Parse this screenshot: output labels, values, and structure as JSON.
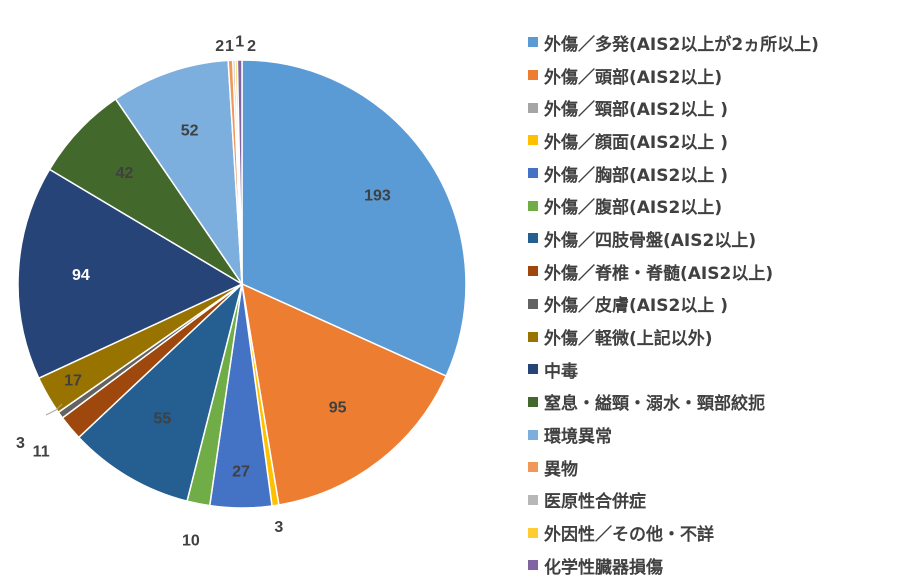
{
  "chart_data": {
    "type": "pie",
    "title": "",
    "categories": [
      "外傷／多発(AIS2以上が2ヵ所以上)",
      "外傷／頭部(AIS2以上)",
      "外傷／頸部(AIS2以上 )",
      "外傷／顔面(AIS2以上 )",
      "外傷／胸部(AIS2以上 )",
      "外傷／腹部(AIS2以上)",
      "外傷／四肢骨盤(AIS2以上)",
      "外傷／脊椎・脊髄(AIS2以上)",
      "外傷／皮膚(AIS2以上 )",
      "外傷／軽微(上記以外)",
      "中毒",
      "窒息・縊頸・溺水・頸部絞扼",
      "環境異常",
      "異物",
      "医原性合併症",
      "外因性／その他・不詳",
      "化学性臓器損傷"
    ],
    "values": [
      193,
      95,
      0,
      3,
      27,
      10,
      55,
      11,
      3,
      17,
      94,
      42,
      52,
      2,
      1,
      1,
      2
    ],
    "data_labels": [
      "193",
      "95",
      "",
      "3",
      "27",
      "10",
      "55",
      "11",
      "3",
      "17",
      "94",
      "42",
      "52",
      "2",
      "1",
      "1",
      "2"
    ],
    "colors": [
      "#5b9bd5",
      "#ed7d31",
      "#a5a5a5",
      "#ffc000",
      "#4472c4",
      "#70ad47",
      "#255e91",
      "#9e480e",
      "#636363",
      "#997300",
      "#264478",
      "#43682b",
      "#7cafdd",
      "#f1975a",
      "#b7b7b7",
      "#ffcd33",
      "#8064a2"
    ],
    "label_colors": [
      "#404040",
      "#404040",
      "#404040",
      "#404040",
      "#404040",
      "#404040",
      "#404040",
      "#404040",
      "#404040",
      "#404040",
      "#ffffff",
      "#404040",
      "#404040",
      "#404040",
      "#404040",
      "#404040",
      "#404040"
    ],
    "legend_position": "right"
  }
}
